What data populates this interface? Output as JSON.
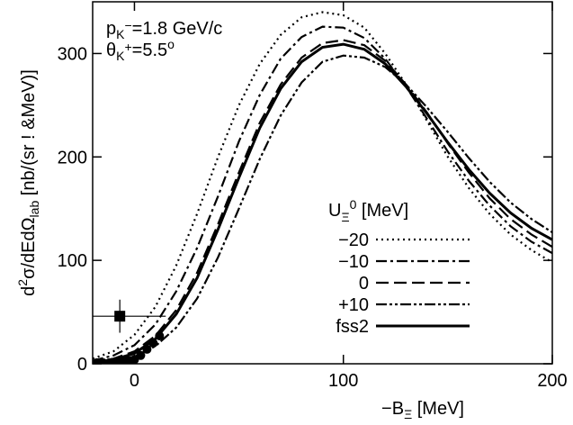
{
  "chart_data": {
    "type": "line",
    "y_label": [
      "d",
      "2",
      "σ/dEdΩ",
      "lab",
      "  [nb/(sr ! &MeV)]"
    ],
    "x_label": [
      "−B",
      "Ξ",
      " [MeV]"
    ],
    "annotations": [
      [
        "p",
        "K",
        "−",
        "=1.8 GeV/c"
      ],
      [
        "θ",
        "K",
        "+",
        "=5.5",
        "o"
      ]
    ],
    "legend_title": [
      "U",
      "Ξ",
      "0",
      " [MeV]"
    ],
    "x": [
      -20,
      -10,
      0,
      10,
      20,
      30,
      40,
      50,
      60,
      70,
      80,
      90,
      100,
      110,
      120,
      130,
      140,
      150,
      160,
      170,
      180,
      190,
      200
    ],
    "series": [
      {
        "name": "−20",
        "color": "#000000",
        "values": [
          5,
          12,
          28,
          55,
          95,
          145,
          200,
          250,
          290,
          318,
          335,
          340,
          337,
          325,
          300,
          270,
          235,
          200,
          170,
          145,
          125,
          110,
          98
        ]
      },
      {
        "name": "−10",
        "color": "#000000",
        "values": [
          3,
          8,
          18,
          38,
          70,
          112,
          162,
          215,
          260,
          295,
          316,
          326,
          325,
          315,
          295,
          268,
          237,
          205,
          177,
          153,
          133,
          118,
          107
        ]
      },
      {
        "name": "0",
        "color": "#000000",
        "values": [
          2,
          5,
          12,
          27,
          52,
          88,
          135,
          185,
          233,
          270,
          296,
          310,
          313,
          308,
          293,
          270,
          243,
          213,
          185,
          160,
          140,
          125,
          113
        ]
      },
      {
        "name": "+10",
        "color": "#000000",
        "values": [
          1,
          3,
          7,
          17,
          35,
          63,
          103,
          150,
          198,
          240,
          272,
          292,
          298,
          296,
          287,
          270,
          248,
          224,
          199,
          176,
          156,
          140,
          127
        ]
      },
      {
        "name": "fss2",
        "color": "#000000",
        "values": [
          1,
          4,
          10,
          24,
          48,
          83,
          130,
          180,
          228,
          266,
          292,
          306,
          309,
          304,
          290,
          268,
          242,
          214,
          188,
          165,
          146,
          131,
          120
        ]
      }
    ],
    "points": {
      "x": [
        -18,
        -15,
        -12,
        -9,
        -6,
        -3,
        0,
        3,
        6,
        9,
        12
      ],
      "y": [
        1,
        1,
        1,
        2,
        2,
        3,
        4,
        8,
        14,
        20,
        27
      ]
    },
    "square": {
      "x": -7,
      "y": 46,
      "xerr": 22,
      "yerr": 16
    },
    "xlim": [
      -20,
      200
    ],
    "xticks": [
      0,
      100,
      200
    ],
    "ylim": [
      0,
      350
    ],
    "yticks": [
      0,
      100,
      200,
      300
    ]
  }
}
